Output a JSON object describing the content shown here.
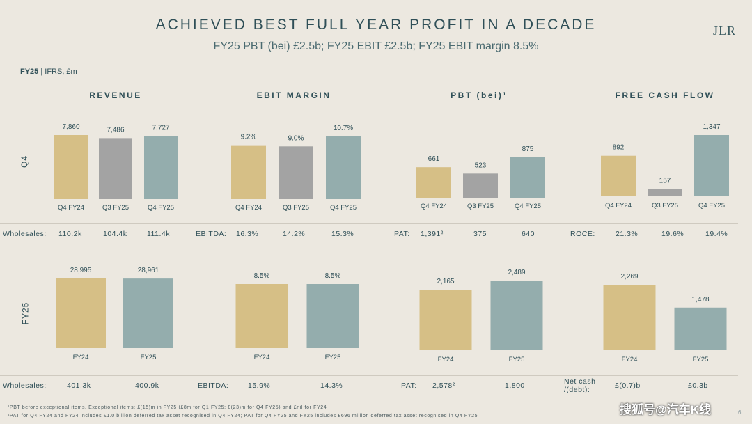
{
  "header": {
    "title": "ACHIEVED BEST FULL YEAR PROFIT IN A DECADE",
    "subtitle": "FY25 PBT (bei) £2.5b; FY25 EBIT £2.5b; FY25 EBIT margin 8.5%",
    "logo": "JLR",
    "basis_bold": "FY25",
    "basis_rest": " | IFRS, £m"
  },
  "row_labels": {
    "q4": "Q4",
    "fy25": "FY25"
  },
  "colors": {
    "prior": "#d6bf86",
    "mid": "#a3a3a3",
    "current": "#94adad",
    "background": "#ece8e0"
  },
  "chart_data": [
    {
      "type": "bar",
      "title": "REVENUE",
      "row": "Q4",
      "categories": [
        "Q4 FY24",
        "Q3 FY25",
        "Q4 FY25"
      ],
      "values": [
        7860,
        7486,
        7727
      ],
      "labels": [
        "7,860",
        "7,486",
        "7,727"
      ]
    },
    {
      "type": "bar",
      "title": "EBIT MARGIN",
      "row": "Q4",
      "categories": [
        "Q4 FY24",
        "Q3 FY25",
        "Q4 FY25"
      ],
      "values": [
        9.2,
        9.0,
        10.7
      ],
      "labels": [
        "9.2%",
        "9.0%",
        "10.7%"
      ]
    },
    {
      "type": "bar",
      "title": "PBT (bei)¹",
      "row": "Q4",
      "categories": [
        "Q4 FY24",
        "Q3 FY25",
        "Q4 FY25"
      ],
      "values": [
        661,
        523,
        875
      ],
      "labels": [
        "661",
        "523",
        "875"
      ]
    },
    {
      "type": "bar",
      "title": "FREE CASH FLOW",
      "row": "Q4",
      "categories": [
        "Q4 FY24",
        "Q3 FY25",
        "Q4 FY25"
      ],
      "values": [
        892,
        157,
        1347
      ],
      "labels": [
        "892",
        "157",
        "1,347"
      ]
    },
    {
      "type": "bar",
      "row": "FY25",
      "categories": [
        "FY24",
        "FY25"
      ],
      "values": [
        28995,
        28961
      ],
      "labels": [
        "28,995",
        "28,961"
      ]
    },
    {
      "type": "bar",
      "row": "FY25",
      "categories": [
        "FY24",
        "FY25"
      ],
      "values": [
        8.5,
        8.5
      ],
      "labels": [
        "8.5%",
        "8.5%"
      ]
    },
    {
      "type": "bar",
      "row": "FY25",
      "categories": [
        "FY24",
        "FY25"
      ],
      "values": [
        2165,
        2489
      ],
      "labels": [
        "2,165",
        "2,489"
      ]
    },
    {
      "type": "bar",
      "row": "FY25",
      "categories": [
        "FY24",
        "FY25"
      ],
      "values": [
        2269,
        1478
      ],
      "labels": [
        "2,269",
        "1,478"
      ]
    }
  ],
  "metrics_q4": [
    {
      "label": "Wholesales:",
      "values": [
        "110.2k",
        "104.4k",
        "111.4k"
      ]
    },
    {
      "label": "EBITDA:",
      "values": [
        "16.3%",
        "14.2%",
        "15.3%"
      ]
    },
    {
      "label": "PAT:",
      "values": [
        "1,391²",
        "375",
        "640"
      ]
    },
    {
      "label": "ROCE:",
      "values": [
        "21.3%",
        "19.6%",
        "19.4%"
      ]
    }
  ],
  "metrics_fy": [
    {
      "label": "Wholesales:",
      "values": [
        "401.3k",
        "400.9k"
      ]
    },
    {
      "label": "EBITDA:",
      "values": [
        "15.9%",
        "14.3%"
      ]
    },
    {
      "label": "PAT:",
      "values": [
        "2,578²",
        "1,800"
      ]
    },
    {
      "label": "Net cash /(debt):",
      "label_line1": "Net cash",
      "label_line2": "/(debt):",
      "values": [
        "£(0.7)b",
        "£0.3b"
      ]
    }
  ],
  "footnotes": [
    "¹PBT before exceptional items. Exceptional items: £(15)m in FY25 (£8m for Q1 FY25; £(23)m for Q4 FY25) and £nil for FY24",
    "²PAT for Q4 FY24 and FY24 includes £1.0 billion deferred tax asset recognised in Q4 FY24; PAT for Q4 FY25 and FY25 includes £696 million deferred tax asset recognised in Q4 FY25"
  ],
  "watermark": "搜狐号@汽车K线",
  "page_number": "6"
}
